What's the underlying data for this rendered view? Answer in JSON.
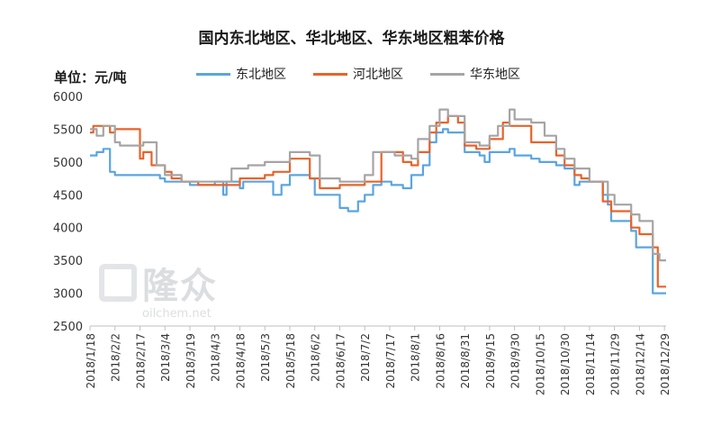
{
  "chart_data": {
    "type": "line",
    "title": "国内东北地区、华北地区、华东地区粗苯价格",
    "unit_label": "单位：元/吨",
    "ylim": [
      2500,
      6000
    ],
    "ytick_step": 500,
    "grid": false,
    "legend_position": "top",
    "x_tick_labels": [
      "2018/1/18",
      "2018/2/2",
      "2018/2/17",
      "2018/3/4",
      "2018/3/19",
      "2018/4/3",
      "2018/4/18",
      "2018/5/3",
      "2018/5/18",
      "2018/6/2",
      "2018/6/17",
      "2018/7/2",
      "2018/7/17",
      "2018/8/1",
      "2018/8/16",
      "2018/8/31",
      "2018/9/15",
      "2018/9/30",
      "2018/10/15",
      "2018/10/30",
      "2018/11/14",
      "2018/11/29",
      "2018/12/14",
      "2018/12/29"
    ],
    "series": [
      {
        "name": "东北地区",
        "color": "#5aa5e0",
        "points": [
          [
            "2018/1/18",
            5100
          ],
          [
            "2018/1/22",
            5100
          ],
          [
            "2018/1/22",
            5150
          ],
          [
            "2018/1/26",
            5150
          ],
          [
            "2018/1/26",
            5200
          ],
          [
            "2018/1/30",
            5200
          ],
          [
            "2018/1/30",
            4850
          ],
          [
            "2018/2/2",
            4850
          ],
          [
            "2018/2/2",
            4800
          ],
          [
            "2018/3/1",
            4800
          ],
          [
            "2018/3/1",
            4750
          ],
          [
            "2018/3/4",
            4750
          ],
          [
            "2018/3/4",
            4700
          ],
          [
            "2018/3/19",
            4700
          ],
          [
            "2018/3/19",
            4650
          ],
          [
            "2018/4/3",
            4650
          ],
          [
            "2018/4/3",
            4700
          ],
          [
            "2018/4/8",
            4700
          ],
          [
            "2018/4/8",
            4500
          ],
          [
            "2018/4/10",
            4500
          ],
          [
            "2018/4/10",
            4700
          ],
          [
            "2018/4/18",
            4700
          ],
          [
            "2018/4/18",
            4600
          ],
          [
            "2018/4/20",
            4600
          ],
          [
            "2018/4/20",
            4700
          ],
          [
            "2018/5/8",
            4700
          ],
          [
            "2018/5/8",
            4500
          ],
          [
            "2018/5/13",
            4500
          ],
          [
            "2018/5/13",
            4650
          ],
          [
            "2018/5/18",
            4650
          ],
          [
            "2018/5/18",
            4800
          ],
          [
            "2018/5/30",
            4800
          ],
          [
            "2018/5/30",
            4750
          ],
          [
            "2018/6/2",
            4750
          ],
          [
            "2018/6/2",
            4500
          ],
          [
            "2018/6/17",
            4500
          ],
          [
            "2018/6/17",
            4300
          ],
          [
            "2018/6/22",
            4300
          ],
          [
            "2018/6/22",
            4250
          ],
          [
            "2018/6/28",
            4250
          ],
          [
            "2018/6/28",
            4400
          ],
          [
            "2018/7/2",
            4400
          ],
          [
            "2018/7/2",
            4500
          ],
          [
            "2018/7/7",
            4500
          ],
          [
            "2018/7/7",
            4650
          ],
          [
            "2018/7/12",
            4650
          ],
          [
            "2018/7/12",
            4700
          ],
          [
            "2018/7/18",
            4700
          ],
          [
            "2018/7/18",
            4650
          ],
          [
            "2018/7/25",
            4650
          ],
          [
            "2018/7/25",
            4600
          ],
          [
            "2018/7/30",
            4600
          ],
          [
            "2018/7/30",
            4800
          ],
          [
            "2018/8/6",
            4800
          ],
          [
            "2018/8/6",
            4950
          ],
          [
            "2018/8/10",
            4950
          ],
          [
            "2018/8/10",
            5300
          ],
          [
            "2018/8/14",
            5300
          ],
          [
            "2018/8/14",
            5450
          ],
          [
            "2018/8/18",
            5450
          ],
          [
            "2018/8/18",
            5500
          ],
          [
            "2018/8/21",
            5500
          ],
          [
            "2018/8/21",
            5450
          ],
          [
            "2018/8/31",
            5450
          ],
          [
            "2018/8/31",
            5150
          ],
          [
            "2018/9/9",
            5150
          ],
          [
            "2018/9/9",
            5100
          ],
          [
            "2018/9/12",
            5100
          ],
          [
            "2018/9/12",
            5000
          ],
          [
            "2018/9/15",
            5000
          ],
          [
            "2018/9/15",
            5150
          ],
          [
            "2018/9/27",
            5150
          ],
          [
            "2018/9/27",
            5200
          ],
          [
            "2018/9/30",
            5200
          ],
          [
            "2018/9/30",
            5100
          ],
          [
            "2018/10/10",
            5100
          ],
          [
            "2018/10/10",
            5050
          ],
          [
            "2018/10/15",
            5050
          ],
          [
            "2018/10/15",
            5000
          ],
          [
            "2018/10/25",
            5000
          ],
          [
            "2018/10/25",
            4950
          ],
          [
            "2018/10/30",
            4950
          ],
          [
            "2018/10/30",
            4900
          ],
          [
            "2018/11/5",
            4900
          ],
          [
            "2018/11/5",
            4650
          ],
          [
            "2018/11/8",
            4650
          ],
          [
            "2018/11/8",
            4700
          ],
          [
            "2018/11/22",
            4700
          ],
          [
            "2018/11/22",
            4500
          ],
          [
            "2018/11/25",
            4500
          ],
          [
            "2018/11/25",
            4350
          ],
          [
            "2018/11/27",
            4350
          ],
          [
            "2018/11/27",
            4100
          ],
          [
            "2018/12/9",
            4100
          ],
          [
            "2018/12/9",
            3950
          ],
          [
            "2018/12/12",
            3950
          ],
          [
            "2018/12/12",
            3700
          ],
          [
            "2018/12/22",
            3700
          ],
          [
            "2018/12/22",
            3000
          ],
          [
            "2018/12/30",
            3000
          ]
        ]
      },
      {
        "name": "河北地区",
        "color": "#e8632a",
        "points": [
          [
            "2018/1/18",
            5450
          ],
          [
            "2018/1/20",
            5450
          ],
          [
            "2018/1/20",
            5550
          ],
          [
            "2018/1/30",
            5550
          ],
          [
            "2018/1/30",
            5450
          ],
          [
            "2018/2/2",
            5450
          ],
          [
            "2018/2/2",
            5500
          ],
          [
            "2018/2/17",
            5500
          ],
          [
            "2018/2/17",
            5050
          ],
          [
            "2018/2/19",
            5050
          ],
          [
            "2018/2/19",
            5150
          ],
          [
            "2018/2/24",
            5150
          ],
          [
            "2018/2/24",
            4950
          ],
          [
            "2018/3/4",
            4950
          ],
          [
            "2018/3/4",
            4850
          ],
          [
            "2018/3/8",
            4850
          ],
          [
            "2018/3/8",
            4750
          ],
          [
            "2018/3/14",
            4750
          ],
          [
            "2018/3/14",
            4700
          ],
          [
            "2018/3/24",
            4700
          ],
          [
            "2018/3/24",
            4650
          ],
          [
            "2018/4/18",
            4650
          ],
          [
            "2018/4/18",
            4750
          ],
          [
            "2018/5/3",
            4750
          ],
          [
            "2018/5/3",
            4800
          ],
          [
            "2018/5/8",
            4800
          ],
          [
            "2018/5/8",
            4850
          ],
          [
            "2018/5/18",
            4850
          ],
          [
            "2018/5/18",
            5050
          ],
          [
            "2018/5/30",
            5050
          ],
          [
            "2018/5/30",
            4750
          ],
          [
            "2018/6/5",
            4750
          ],
          [
            "2018/6/5",
            4600
          ],
          [
            "2018/6/17",
            4600
          ],
          [
            "2018/6/17",
            4650
          ],
          [
            "2018/7/2",
            4650
          ],
          [
            "2018/7/2",
            4700
          ],
          [
            "2018/7/12",
            4700
          ],
          [
            "2018/7/12",
            5150
          ],
          [
            "2018/7/25",
            5150
          ],
          [
            "2018/7/25",
            5000
          ],
          [
            "2018/7/30",
            5000
          ],
          [
            "2018/7/30",
            4950
          ],
          [
            "2018/8/3",
            4950
          ],
          [
            "2018/8/3",
            5150
          ],
          [
            "2018/8/10",
            5150
          ],
          [
            "2018/8/10",
            5450
          ],
          [
            "2018/8/14",
            5450
          ],
          [
            "2018/8/14",
            5600
          ],
          [
            "2018/8/21",
            5600
          ],
          [
            "2018/8/21",
            5700
          ],
          [
            "2018/8/27",
            5700
          ],
          [
            "2018/8/27",
            5600
          ],
          [
            "2018/8/31",
            5600
          ],
          [
            "2018/8/31",
            5250
          ],
          [
            "2018/9/7",
            5250
          ],
          [
            "2018/9/7",
            5200
          ],
          [
            "2018/9/15",
            5200
          ],
          [
            "2018/9/15",
            5350
          ],
          [
            "2018/9/23",
            5350
          ],
          [
            "2018/9/23",
            5600
          ],
          [
            "2018/9/27",
            5600
          ],
          [
            "2018/9/27",
            5550
          ],
          [
            "2018/10/10",
            5550
          ],
          [
            "2018/10/10",
            5300
          ],
          [
            "2018/10/25",
            5300
          ],
          [
            "2018/10/25",
            5100
          ],
          [
            "2018/10/30",
            5100
          ],
          [
            "2018/10/30",
            4950
          ],
          [
            "2018/11/5",
            4950
          ],
          [
            "2018/11/5",
            4800
          ],
          [
            "2018/11/9",
            4800
          ],
          [
            "2018/11/9",
            4750
          ],
          [
            "2018/11/14",
            4750
          ],
          [
            "2018/11/14",
            4700
          ],
          [
            "2018/11/22",
            4700
          ],
          [
            "2018/11/22",
            4400
          ],
          [
            "2018/11/27",
            4400
          ],
          [
            "2018/11/27",
            4250
          ],
          [
            "2018/12/9",
            4250
          ],
          [
            "2018/12/9",
            4000
          ],
          [
            "2018/12/14",
            4000
          ],
          [
            "2018/12/14",
            3900
          ],
          [
            "2018/12/22",
            3900
          ],
          [
            "2018/12/22",
            3700
          ],
          [
            "2018/12/25",
            3700
          ],
          [
            "2018/12/25",
            3100
          ],
          [
            "2018/12/30",
            3100
          ]
        ]
      },
      {
        "name": "华东地区",
        "color": "#a5a5a5",
        "points": [
          [
            "2018/1/18",
            5500
          ],
          [
            "2018/1/22",
            5500
          ],
          [
            "2018/1/22",
            5400
          ],
          [
            "2018/1/26",
            5400
          ],
          [
            "2018/1/26",
            5550
          ],
          [
            "2018/2/2",
            5550
          ],
          [
            "2018/2/2",
            5300
          ],
          [
            "2018/2/5",
            5300
          ],
          [
            "2018/2/5",
            5250
          ],
          [
            "2018/2/19",
            5250
          ],
          [
            "2018/2/19",
            5300
          ],
          [
            "2018/2/27",
            5300
          ],
          [
            "2018/2/27",
            4950
          ],
          [
            "2018/3/4",
            4950
          ],
          [
            "2018/3/4",
            4800
          ],
          [
            "2018/3/14",
            4800
          ],
          [
            "2018/3/14",
            4700
          ],
          [
            "2018/4/13",
            4700
          ],
          [
            "2018/4/13",
            4900
          ],
          [
            "2018/4/23",
            4900
          ],
          [
            "2018/4/23",
            4950
          ],
          [
            "2018/5/3",
            4950
          ],
          [
            "2018/5/3",
            5000
          ],
          [
            "2018/5/18",
            5000
          ],
          [
            "2018/5/18",
            5150
          ],
          [
            "2018/5/30",
            5150
          ],
          [
            "2018/5/30",
            5100
          ],
          [
            "2018/6/5",
            5100
          ],
          [
            "2018/6/5",
            4750
          ],
          [
            "2018/6/17",
            4750
          ],
          [
            "2018/6/17",
            4700
          ],
          [
            "2018/7/2",
            4700
          ],
          [
            "2018/7/2",
            4800
          ],
          [
            "2018/7/7",
            4800
          ],
          [
            "2018/7/7",
            5150
          ],
          [
            "2018/7/20",
            5150
          ],
          [
            "2018/7/20",
            5100
          ],
          [
            "2018/7/30",
            5100
          ],
          [
            "2018/7/30",
            5050
          ],
          [
            "2018/8/3",
            5050
          ],
          [
            "2018/8/3",
            5350
          ],
          [
            "2018/8/10",
            5350
          ],
          [
            "2018/8/10",
            5550
          ],
          [
            "2018/8/16",
            5550
          ],
          [
            "2018/8/16",
            5800
          ],
          [
            "2018/8/21",
            5800
          ],
          [
            "2018/8/21",
            5700
          ],
          [
            "2018/8/31",
            5700
          ],
          [
            "2018/8/31",
            5300
          ],
          [
            "2018/9/9",
            5300
          ],
          [
            "2018/9/9",
            5250
          ],
          [
            "2018/9/15",
            5250
          ],
          [
            "2018/9/15",
            5400
          ],
          [
            "2018/9/20",
            5400
          ],
          [
            "2018/9/20",
            5550
          ],
          [
            "2018/9/27",
            5550
          ],
          [
            "2018/9/27",
            5800
          ],
          [
            "2018/9/30",
            5800
          ],
          [
            "2018/9/30",
            5650
          ],
          [
            "2018/10/10",
            5650
          ],
          [
            "2018/10/10",
            5600
          ],
          [
            "2018/10/18",
            5600
          ],
          [
            "2018/10/18",
            5400
          ],
          [
            "2018/10/25",
            5400
          ],
          [
            "2018/10/25",
            5200
          ],
          [
            "2018/10/30",
            5200
          ],
          [
            "2018/10/30",
            5050
          ],
          [
            "2018/11/5",
            5050
          ],
          [
            "2018/11/5",
            4900
          ],
          [
            "2018/11/14",
            4900
          ],
          [
            "2018/11/14",
            4700
          ],
          [
            "2018/11/25",
            4700
          ],
          [
            "2018/11/25",
            4500
          ],
          [
            "2018/11/29",
            4500
          ],
          [
            "2018/11/29",
            4350
          ],
          [
            "2018/12/9",
            4350
          ],
          [
            "2018/12/9",
            4200
          ],
          [
            "2018/12/14",
            4200
          ],
          [
            "2018/12/14",
            4100
          ],
          [
            "2018/12/22",
            4100
          ],
          [
            "2018/12/22",
            3600
          ],
          [
            "2018/12/26",
            3600
          ],
          [
            "2018/12/26",
            3500
          ],
          [
            "2018/12/30",
            3500
          ]
        ]
      }
    ]
  },
  "watermark": {
    "brand": "隆众",
    "url": "oilchem.net"
  }
}
